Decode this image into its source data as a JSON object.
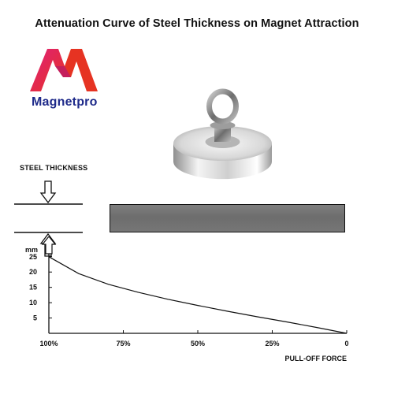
{
  "header": {
    "title": "Attenuation Curve of Steel Thickness on Magnet Attraction"
  },
  "brand": {
    "name": "Magnetpro",
    "colors": {
      "pink": "#e0207a",
      "red": "#e63322",
      "blue": "#1e2a8a"
    }
  },
  "diagram": {
    "steel_label": "STEEL THICKNESS"
  },
  "chart_data": {
    "type": "line",
    "ylabel": "mm",
    "xlabel": "PULL-OFF FORCE",
    "x_ticks": [
      "100%",
      "75%",
      "50%",
      "25%",
      "0"
    ],
    "y_ticks": [
      25,
      20,
      15,
      10,
      5
    ],
    "ylim": [
      0,
      27
    ],
    "xlim": [
      100,
      0
    ],
    "series": [
      {
        "x": [
          100,
          90,
          80,
          70,
          60,
          50,
          40,
          30,
          20,
          10,
          0
        ],
        "y": [
          25,
          19.5,
          16,
          13.4,
          11.1,
          9.1,
          7.2,
          5.4,
          3.7,
          1.9,
          0
        ]
      }
    ],
    "grid": false
  }
}
